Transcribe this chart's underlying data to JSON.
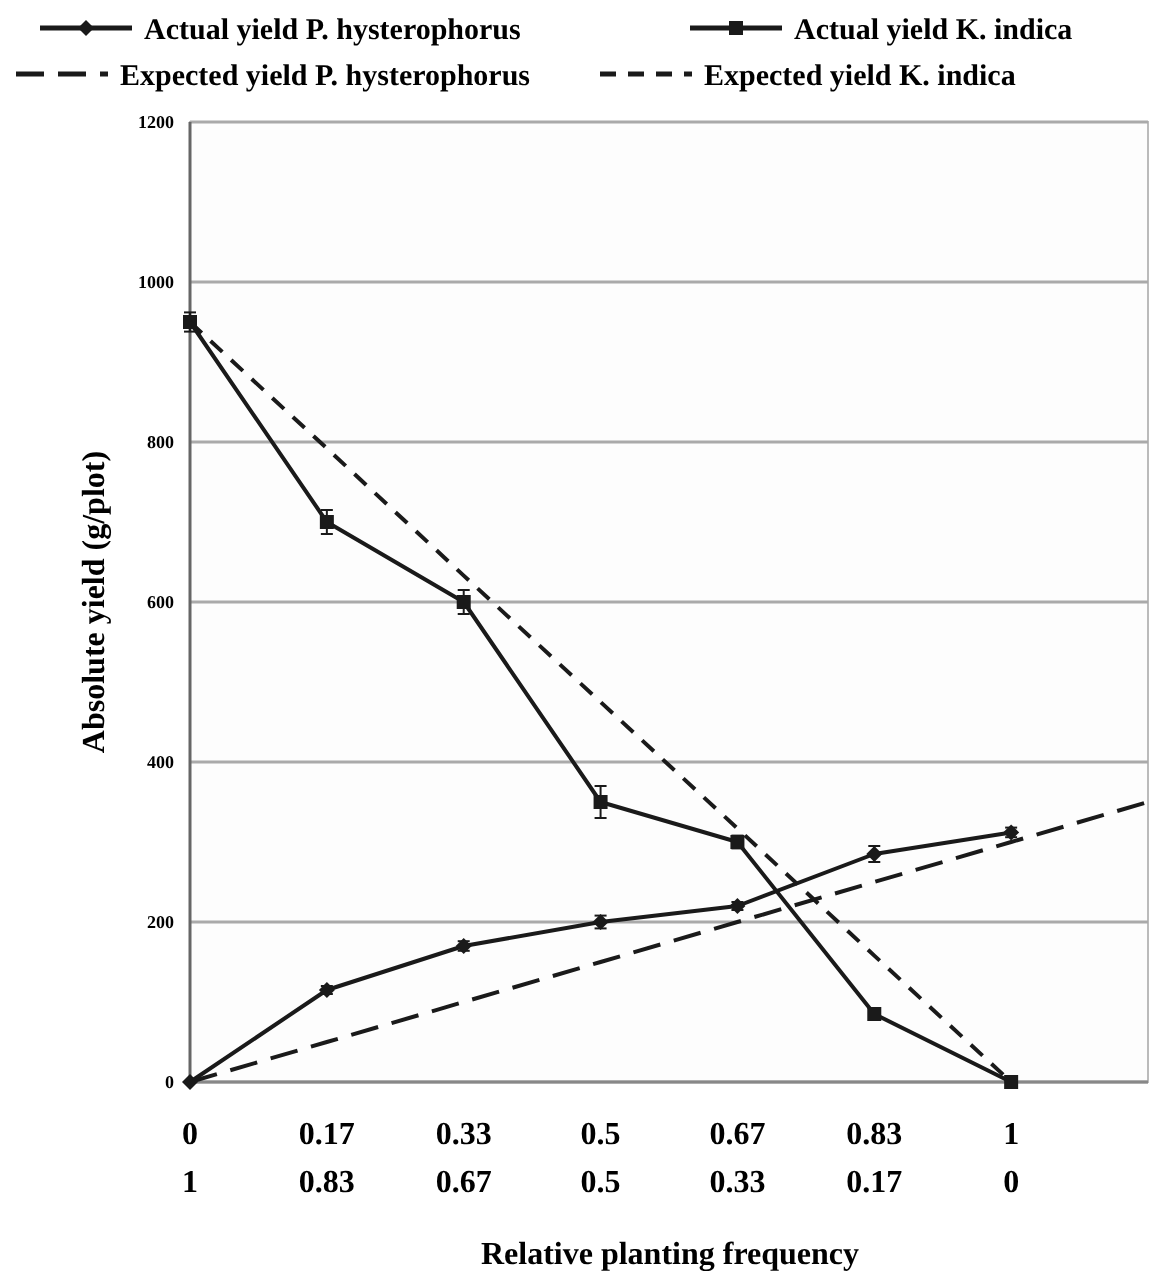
{
  "chart_data": {
    "type": "line",
    "xlabel": "Relative planting frequency",
    "ylabel": "Absolute yield (g/plot)",
    "categories": [
      "0\n1",
      "0.17\n0.83",
      "0.33\n0.67",
      "0.5\n0.5",
      "0.67\n0.33",
      "0.83\n0.17",
      "1\n0",
      null
    ],
    "ylim": [
      0,
      1200
    ],
    "yticks": [
      0,
      200,
      400,
      600,
      800,
      1000,
      1200
    ],
    "grid": "y",
    "legend": "top",
    "series": [
      {
        "name": "Actual yield P. hysterophorus",
        "color": "#1a1a1a",
        "marker": "diamond",
        "line_style": "solid",
        "values": [
          0,
          115,
          170,
          200,
          220,
          285,
          312,
          null
        ],
        "errors": [
          null,
          5,
          6,
          8,
          5,
          10,
          6,
          null
        ]
      },
      {
        "name": "Actual yield K. indica",
        "color": "#1a1a1a",
        "marker": "square",
        "line_style": "solid",
        "values": [
          950,
          700,
          600,
          350,
          300,
          85,
          0,
          null
        ],
        "errors": [
          12,
          15,
          15,
          20,
          8,
          6,
          null,
          null
        ]
      },
      {
        "name": "Expected yield P. hysterophorus",
        "color": "#1a1a1a",
        "marker": "none",
        "line_style": "dashed",
        "values": [
          0,
          50,
          100,
          150,
          200,
          250,
          300,
          350
        ]
      },
      {
        "name": "Expected yield K. indica",
        "color": "#1a1a1a",
        "marker": "none",
        "line_style": "dashed",
        "values": [
          950,
          792,
          633,
          475,
          317,
          158,
          0,
          null
        ]
      }
    ]
  }
}
